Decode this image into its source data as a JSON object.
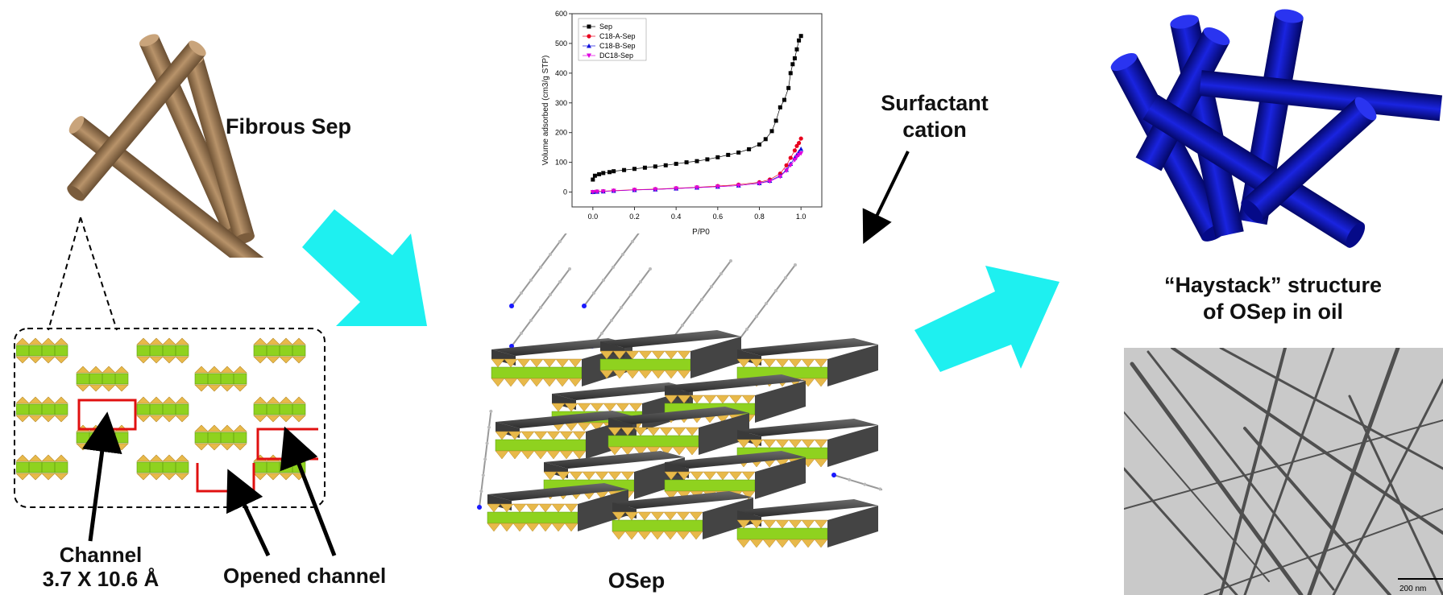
{
  "labels": {
    "fibrous_sep": "Fibrous Sep",
    "channel_line1": "Channel",
    "channel_line2": "3.7 X 10.6 Å",
    "opened_channel": "Opened channel",
    "osep": "OSep",
    "surfactant_line1": "Surfactant",
    "surfactant_line2": "cation",
    "haystack_line1": "“Haystack” structure",
    "haystack_line2": "of OSep in oil",
    "scale_bar": "200 nm"
  },
  "colors": {
    "rod_brown": "#a07f5c",
    "rod_blue": "#0b14b0",
    "arrow_cyan": "#1ef0f0",
    "octahedra_green": "#8fd21f",
    "tetrahedra_yellow": "#e8b94a",
    "channel_red": "#e01010"
  },
  "chart_data": {
    "type": "scatter",
    "xlabel": "P/P0",
    "ylabel": "Volume adsorbed (cm3/g STP)",
    "xlim": [
      -0.1,
      1.1
    ],
    "ylim": [
      -50,
      600
    ],
    "xticks": [
      "0.0",
      "0.2",
      "0.4",
      "0.6",
      "0.8",
      "1.0"
    ],
    "yticks": [
      "0",
      "100",
      "200",
      "300",
      "400",
      "500",
      "600"
    ],
    "legend_position": "top-left",
    "series": [
      {
        "name": "Sep",
        "color": "#000000",
        "marker": "square",
        "x": [
          0.0,
          0.01,
          0.03,
          0.05,
          0.08,
          0.1,
          0.15,
          0.2,
          0.25,
          0.3,
          0.35,
          0.4,
          0.45,
          0.5,
          0.55,
          0.6,
          0.65,
          0.7,
          0.75,
          0.8,
          0.83,
          0.86,
          0.88,
          0.9,
          0.92,
          0.94,
          0.95,
          0.96,
          0.97,
          0.98,
          0.99,
          1.0
        ],
        "y": [
          42,
          55,
          60,
          64,
          67,
          70,
          74,
          78,
          82,
          86,
          90,
          95,
          100,
          104,
          110,
          117,
          125,
          133,
          144,
          160,
          178,
          205,
          240,
          285,
          310,
          350,
          400,
          430,
          450,
          480,
          510,
          525
        ]
      },
      {
        "name": "C18-A-Sep",
        "color": "#e8001e",
        "marker": "circle",
        "x": [
          0.0,
          0.02,
          0.05,
          0.1,
          0.2,
          0.3,
          0.4,
          0.5,
          0.6,
          0.7,
          0.8,
          0.85,
          0.9,
          0.93,
          0.95,
          0.97,
          0.98,
          0.99,
          1.0
        ],
        "y": [
          0,
          2,
          3,
          5,
          8,
          10,
          13,
          16,
          20,
          25,
          33,
          42,
          62,
          90,
          115,
          140,
          155,
          165,
          180
        ]
      },
      {
        "name": "C18-B-Sep",
        "color": "#1010dd",
        "marker": "triangle-up",
        "x": [
          0.0,
          0.02,
          0.05,
          0.1,
          0.2,
          0.3,
          0.4,
          0.5,
          0.6,
          0.7,
          0.8,
          0.85,
          0.9,
          0.93,
          0.95,
          0.97,
          0.98,
          0.99,
          1.0
        ],
        "y": [
          0,
          1,
          2,
          4,
          7,
          9,
          12,
          15,
          18,
          22,
          30,
          38,
          55,
          75,
          95,
          115,
          125,
          135,
          145
        ]
      },
      {
        "name": "DC18-Sep",
        "color": "#e000e0",
        "marker": "triangle-down",
        "x": [
          0.0,
          0.02,
          0.05,
          0.1,
          0.2,
          0.3,
          0.4,
          0.5,
          0.6,
          0.7,
          0.8,
          0.85,
          0.9,
          0.93,
          0.95,
          0.97,
          0.98,
          0.99,
          1.0
        ],
        "y": [
          0,
          1,
          2,
          4,
          7,
          9,
          12,
          15,
          18,
          22,
          29,
          36,
          52,
          72,
          90,
          108,
          118,
          125,
          130
        ]
      }
    ]
  }
}
